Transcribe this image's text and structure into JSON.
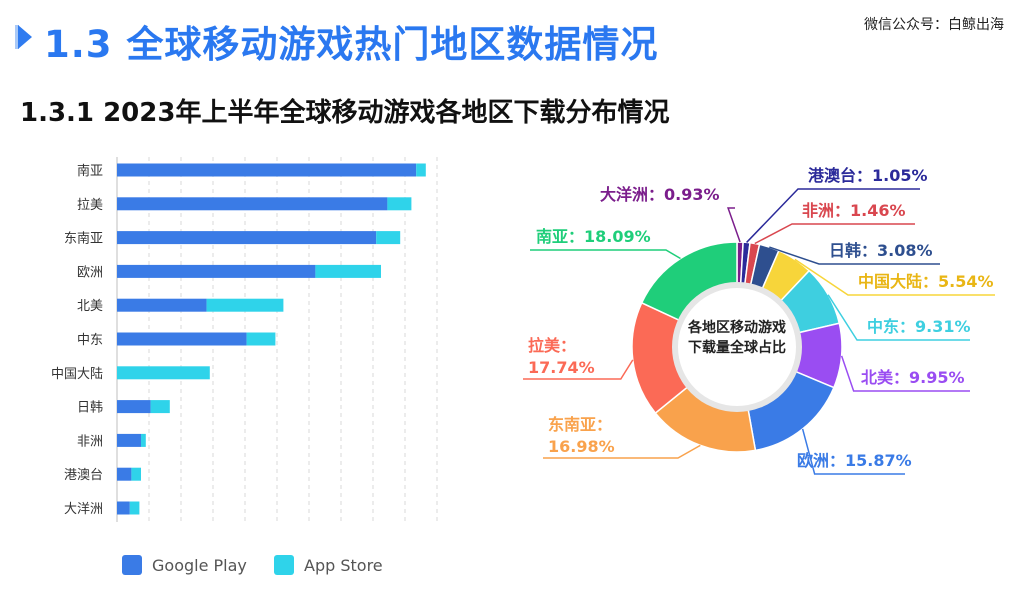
{
  "header": {
    "main_title": "1.3 全球移动游戏热门地区数据情况",
    "sub_title": "1.3.1  2023年上半年全球移动游戏各地区下载分布情况",
    "watermark": "微信公众号：白鲸出海"
  },
  "legend": {
    "google_play": "Google Play",
    "app_store": "App Store"
  },
  "colors": {
    "google_play": "#3a7be6",
    "app_store": "#2fd3ea",
    "accent": "#2a78f0"
  },
  "chart_data": [
    {
      "type": "bar",
      "orientation": "horizontal",
      "stacked": true,
      "categories": [
        "南亚",
        "拉美",
        "东南亚",
        "欧洲",
        "北美",
        "中东",
        "中国大陆",
        "日韩",
        "非洲",
        "港澳台",
        "大洋洲"
      ],
      "series": [
        {
          "name": "Google Play",
          "values": [
            93.5,
            84.5,
            81,
            62,
            28,
            40.5,
            0,
            10.5,
            7.5,
            4.5,
            4
          ]
        },
        {
          "name": "App Store",
          "values": [
            3,
            7.5,
            7.5,
            20.5,
            24,
            9,
            29,
            6,
            1.5,
            3,
            3
          ]
        }
      ],
      "xlim": [
        0,
        100
      ],
      "grid": true,
      "legend_position": "bottom"
    },
    {
      "type": "pie",
      "donut": true,
      "center_label": [
        "各地区移动游戏",
        "下载量全球占比"
      ],
      "slices": [
        {
          "name": "大洋洲",
          "value": 0.93,
          "label": "0.93%",
          "color": "#7b1e8c"
        },
        {
          "name": "港澳台",
          "value": 1.05,
          "label": "1.05%",
          "color": "#2b2a9a"
        },
        {
          "name": "非洲",
          "value": 1.46,
          "label": "1.46%",
          "color": "#d9474f"
        },
        {
          "name": "日韩",
          "value": 3.08,
          "label": "3.08%",
          "color": "#2e4f8f"
        },
        {
          "name": "中国大陆",
          "value": 5.54,
          "label": "5.54%",
          "color": "#f7d53a"
        },
        {
          "name": "中东",
          "value": 9.31,
          "label": "9.31%",
          "color": "#3ecfe0"
        },
        {
          "name": "北美",
          "value": 9.95,
          "label": "9.95%",
          "color": "#9a4df2"
        },
        {
          "name": "欧洲",
          "value": 15.87,
          "label": "15.87%",
          "color": "#3a7be6"
        },
        {
          "name": "东南亚",
          "value": 16.98,
          "label": "16.98%",
          "color": "#f9a24c"
        },
        {
          "name": "拉美",
          "value": 17.74,
          "label": "17.74%",
          "color": "#fb6a56"
        },
        {
          "name": "南亚",
          "value": 18.09,
          "label": "18.09%",
          "color": "#1fce7a"
        }
      ]
    }
  ]
}
